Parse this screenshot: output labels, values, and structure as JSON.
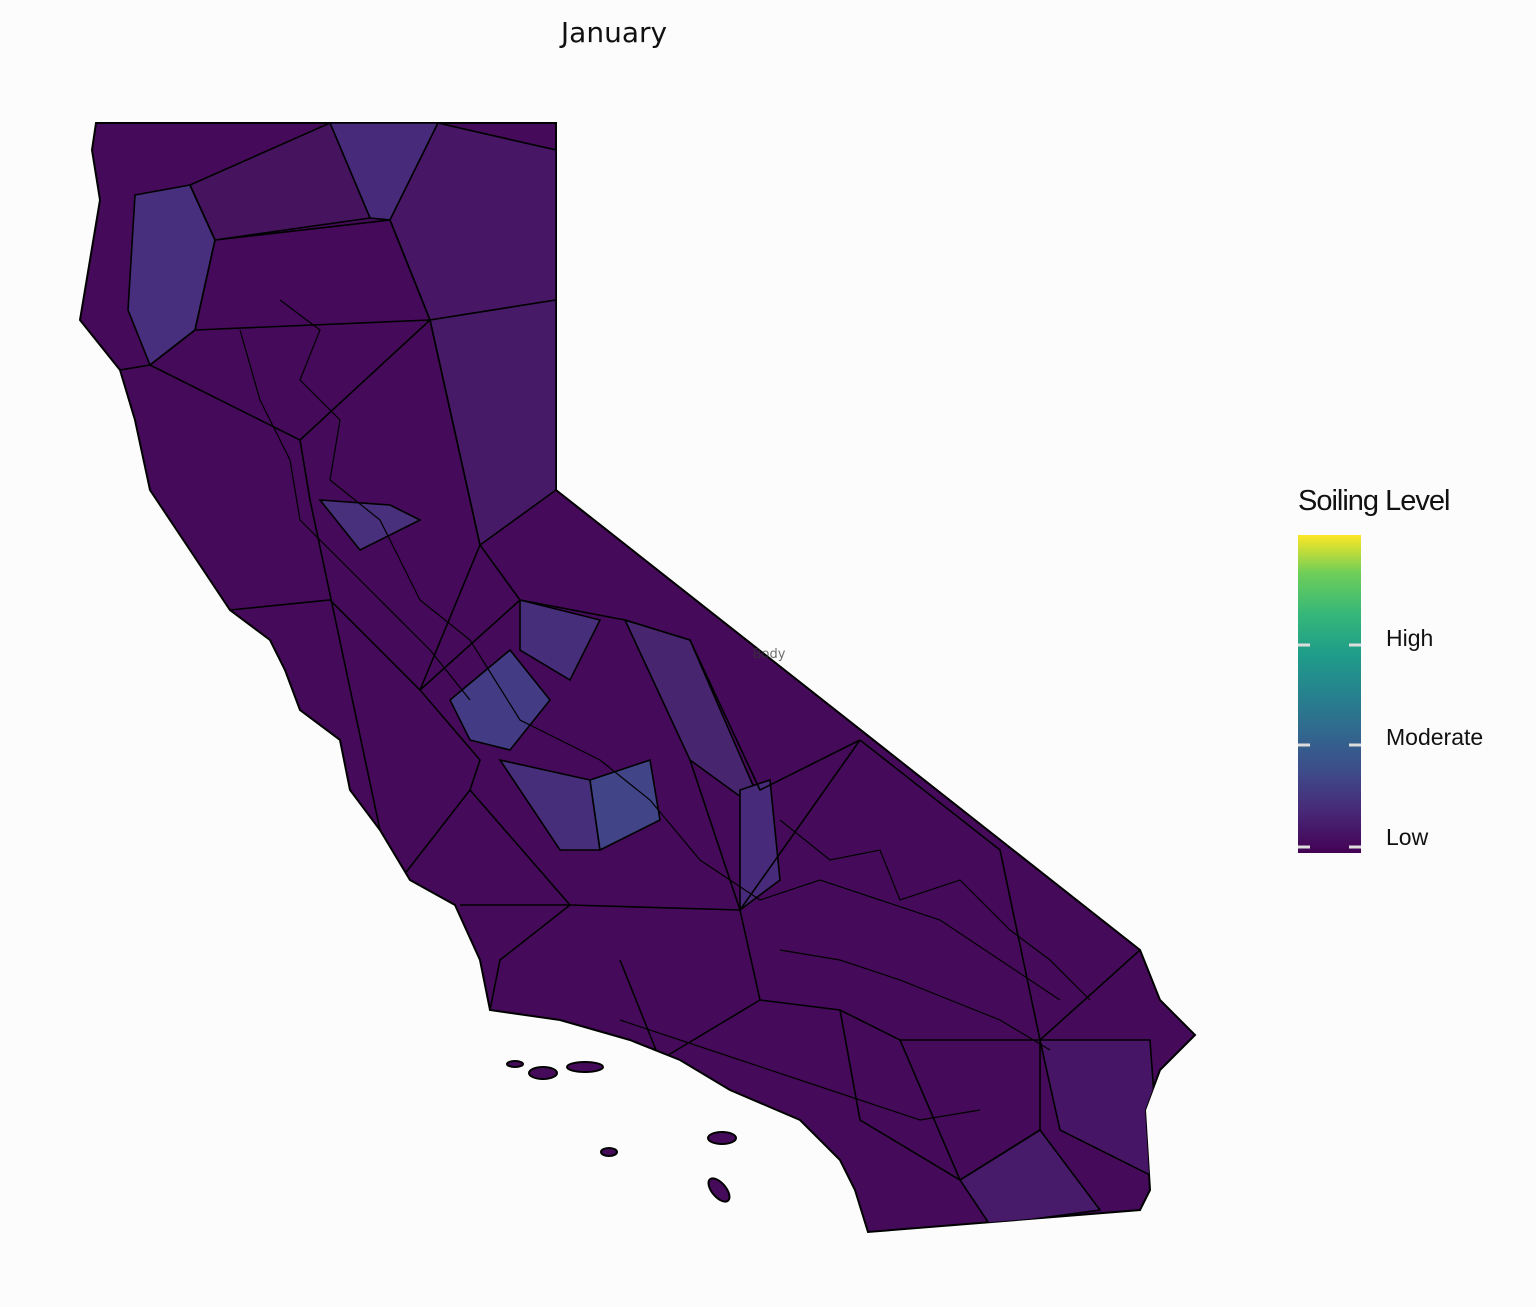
{
  "title": "January",
  "annotation": "Body",
  "legend": {
    "title": "Soiling Level",
    "labels": [
      "High",
      "Moderate",
      "Low"
    ]
  }
}
